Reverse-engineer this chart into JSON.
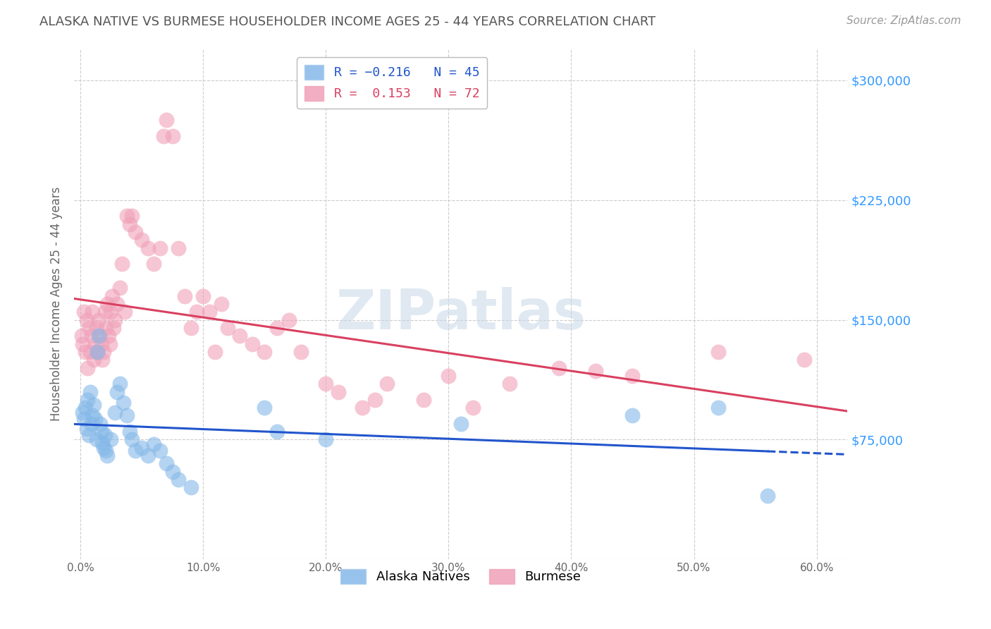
{
  "title": "ALASKA NATIVE VS BURMESE HOUSEHOLDER INCOME AGES 25 - 44 YEARS CORRELATION CHART",
  "source": "Source: ZipAtlas.com",
  "ylabel": "Householder Income Ages 25 - 44 years",
  "xlabel_ticks": [
    "0.0%",
    "10.0%",
    "20.0%",
    "30.0%",
    "40.0%",
    "50.0%",
    "60.0%"
  ],
  "xlabel_vals": [
    0.0,
    0.1,
    0.2,
    0.3,
    0.4,
    0.5,
    0.6
  ],
  "yticks": [
    0,
    75000,
    150000,
    225000,
    300000
  ],
  "ylim": [
    0,
    320000
  ],
  "xlim": [
    -0.005,
    0.625
  ],
  "alaska_color": "#85b8e8",
  "burmese_color": "#f0a0b8",
  "alaska_line_color": "#2255cc",
  "burmese_line_color": "#d94060",
  "watermark": "ZIPatlas",
  "background_color": "#ffffff",
  "grid_color": "#cccccc",
  "title_color": "#555555",
  "axis_label_color": "#666666",
  "right_tick_color": "#3399ff",
  "alaska_scatter": [
    [
      0.002,
      92000
    ],
    [
      0.003,
      88000
    ],
    [
      0.004,
      95000
    ],
    [
      0.005,
      82000
    ],
    [
      0.006,
      100000
    ],
    [
      0.007,
      78000
    ],
    [
      0.008,
      105000
    ],
    [
      0.009,
      85000
    ],
    [
      0.01,
      90000
    ],
    [
      0.011,
      97000
    ],
    [
      0.012,
      88000
    ],
    [
      0.013,
      75000
    ],
    [
      0.014,
      130000
    ],
    [
      0.015,
      140000
    ],
    [
      0.016,
      85000
    ],
    [
      0.017,
      80000
    ],
    [
      0.018,
      73000
    ],
    [
      0.019,
      70000
    ],
    [
      0.02,
      78000
    ],
    [
      0.021,
      68000
    ],
    [
      0.022,
      65000
    ],
    [
      0.025,
      75000
    ],
    [
      0.028,
      92000
    ],
    [
      0.03,
      105000
    ],
    [
      0.032,
      110000
    ],
    [
      0.035,
      98000
    ],
    [
      0.038,
      90000
    ],
    [
      0.04,
      80000
    ],
    [
      0.042,
      75000
    ],
    [
      0.045,
      68000
    ],
    [
      0.05,
      70000
    ],
    [
      0.055,
      65000
    ],
    [
      0.06,
      72000
    ],
    [
      0.065,
      68000
    ],
    [
      0.07,
      60000
    ],
    [
      0.075,
      55000
    ],
    [
      0.08,
      50000
    ],
    [
      0.09,
      45000
    ],
    [
      0.15,
      95000
    ],
    [
      0.16,
      80000
    ],
    [
      0.2,
      75000
    ],
    [
      0.31,
      85000
    ],
    [
      0.45,
      90000
    ],
    [
      0.52,
      95000
    ],
    [
      0.56,
      40000
    ]
  ],
  "burmese_scatter": [
    [
      0.001,
      140000
    ],
    [
      0.002,
      135000
    ],
    [
      0.003,
      155000
    ],
    [
      0.004,
      130000
    ],
    [
      0.005,
      150000
    ],
    [
      0.006,
      120000
    ],
    [
      0.007,
      145000
    ],
    [
      0.008,
      130000
    ],
    [
      0.009,
      140000
    ],
    [
      0.01,
      155000
    ],
    [
      0.011,
      125000
    ],
    [
      0.012,
      135000
    ],
    [
      0.013,
      145000
    ],
    [
      0.014,
      130000
    ],
    [
      0.015,
      150000
    ],
    [
      0.016,
      140000
    ],
    [
      0.017,
      135000
    ],
    [
      0.018,
      125000
    ],
    [
      0.019,
      130000
    ],
    [
      0.02,
      155000
    ],
    [
      0.021,
      145000
    ],
    [
      0.022,
      160000
    ],
    [
      0.023,
      140000
    ],
    [
      0.024,
      135000
    ],
    [
      0.025,
      155000
    ],
    [
      0.026,
      165000
    ],
    [
      0.027,
      145000
    ],
    [
      0.028,
      150000
    ],
    [
      0.03,
      160000
    ],
    [
      0.032,
      170000
    ],
    [
      0.034,
      185000
    ],
    [
      0.036,
      155000
    ],
    [
      0.038,
      215000
    ],
    [
      0.04,
      210000
    ],
    [
      0.042,
      215000
    ],
    [
      0.045,
      205000
    ],
    [
      0.05,
      200000
    ],
    [
      0.055,
      195000
    ],
    [
      0.06,
      185000
    ],
    [
      0.065,
      195000
    ],
    [
      0.068,
      265000
    ],
    [
      0.07,
      275000
    ],
    [
      0.075,
      265000
    ],
    [
      0.08,
      195000
    ],
    [
      0.085,
      165000
    ],
    [
      0.09,
      145000
    ],
    [
      0.095,
      155000
    ],
    [
      0.1,
      165000
    ],
    [
      0.105,
      155000
    ],
    [
      0.11,
      130000
    ],
    [
      0.115,
      160000
    ],
    [
      0.12,
      145000
    ],
    [
      0.13,
      140000
    ],
    [
      0.14,
      135000
    ],
    [
      0.15,
      130000
    ],
    [
      0.16,
      145000
    ],
    [
      0.17,
      150000
    ],
    [
      0.18,
      130000
    ],
    [
      0.2,
      110000
    ],
    [
      0.21,
      105000
    ],
    [
      0.23,
      95000
    ],
    [
      0.24,
      100000
    ],
    [
      0.25,
      110000
    ],
    [
      0.28,
      100000
    ],
    [
      0.3,
      115000
    ],
    [
      0.32,
      95000
    ],
    [
      0.35,
      110000
    ],
    [
      0.39,
      120000
    ],
    [
      0.42,
      118000
    ],
    [
      0.45,
      115000
    ],
    [
      0.52,
      130000
    ],
    [
      0.59,
      125000
    ]
  ]
}
